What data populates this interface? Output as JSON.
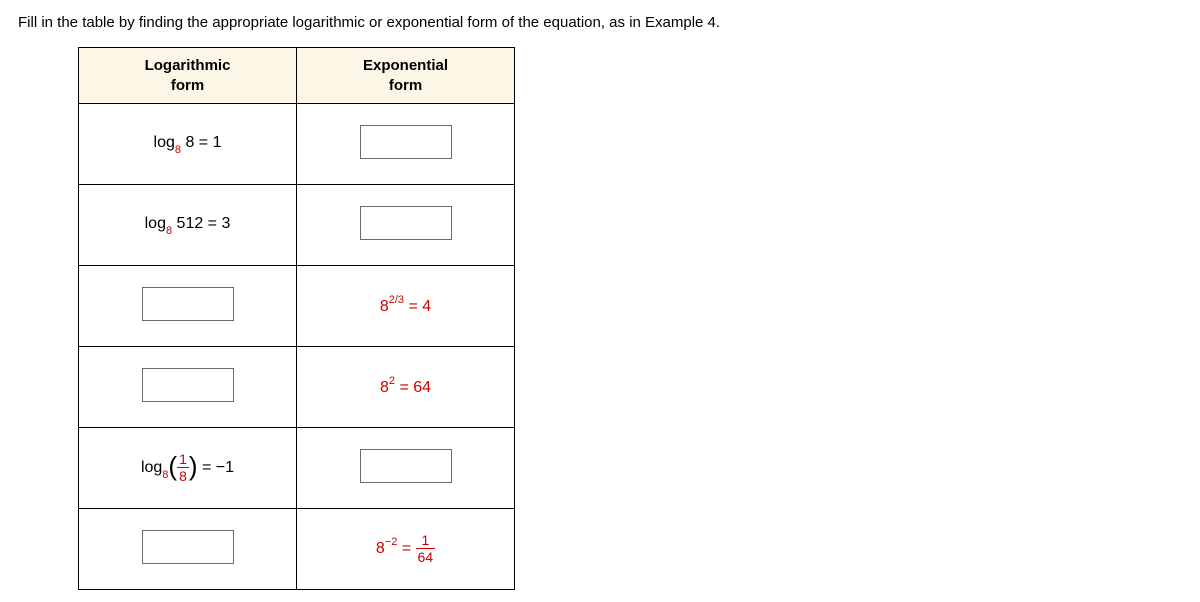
{
  "instruction": "Fill in the table by finding the appropriate logarithmic or exponential form of the equation, as in Example 4.",
  "headers": {
    "log_line1": "Logarithmic",
    "log_line2": "form",
    "exp_line1": "Exponential",
    "exp_line2": "form"
  },
  "rows": {
    "r1": {
      "log_prefix": "log",
      "log_base": "8",
      "log_arg": " 8 = 1"
    },
    "r2": {
      "log_prefix": "log",
      "log_base": "8",
      "log_arg": " 512 = 3"
    },
    "r3": {
      "exp_base": "8",
      "exp_pow": "2/3",
      "exp_rhs": " = 4"
    },
    "r4": {
      "exp_base": "8",
      "exp_pow": "2",
      "exp_rhs": " = 64"
    },
    "r5": {
      "log_prefix": "log",
      "log_base": "8",
      "frac_num": "1",
      "frac_den": "8",
      "rhs": " = −1"
    },
    "r6": {
      "exp_base": "8",
      "exp_pow": "−2",
      "eq": " = ",
      "frac_num": "1",
      "frac_den": "64"
    }
  }
}
